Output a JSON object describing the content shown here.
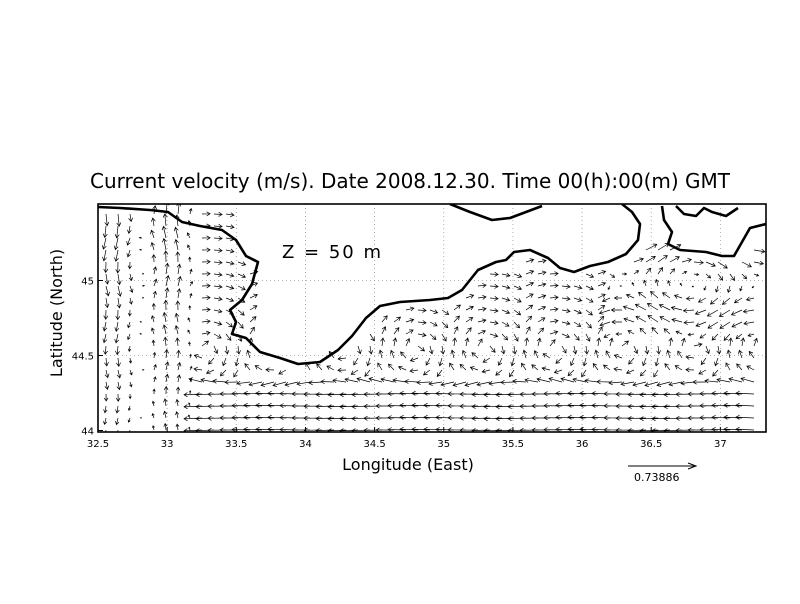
{
  "title": "Current velocity (m/s). Date 2008.12.30. Time 00(h):00(m) GMT",
  "annotation": "Z = 50 m",
  "x_axis": {
    "label": "Longitude (East)",
    "range": [
      32.5,
      37.33
    ],
    "ticks": [
      "32.5",
      "33",
      "33.5",
      "34",
      "34.5",
      "35",
      "35.5",
      "36",
      "36.5",
      "37"
    ]
  },
  "y_axis": {
    "label": "Latitude (North)",
    "range": [
      43.99,
      45.51
    ],
    "ticks": [
      "44",
      "44.5",
      "45"
    ]
  },
  "reference_vector": {
    "value": "0.73886"
  },
  "grid": true,
  "colors": {
    "coastline": "#000000",
    "vectors": "#000000",
    "grid": "#999999"
  }
}
